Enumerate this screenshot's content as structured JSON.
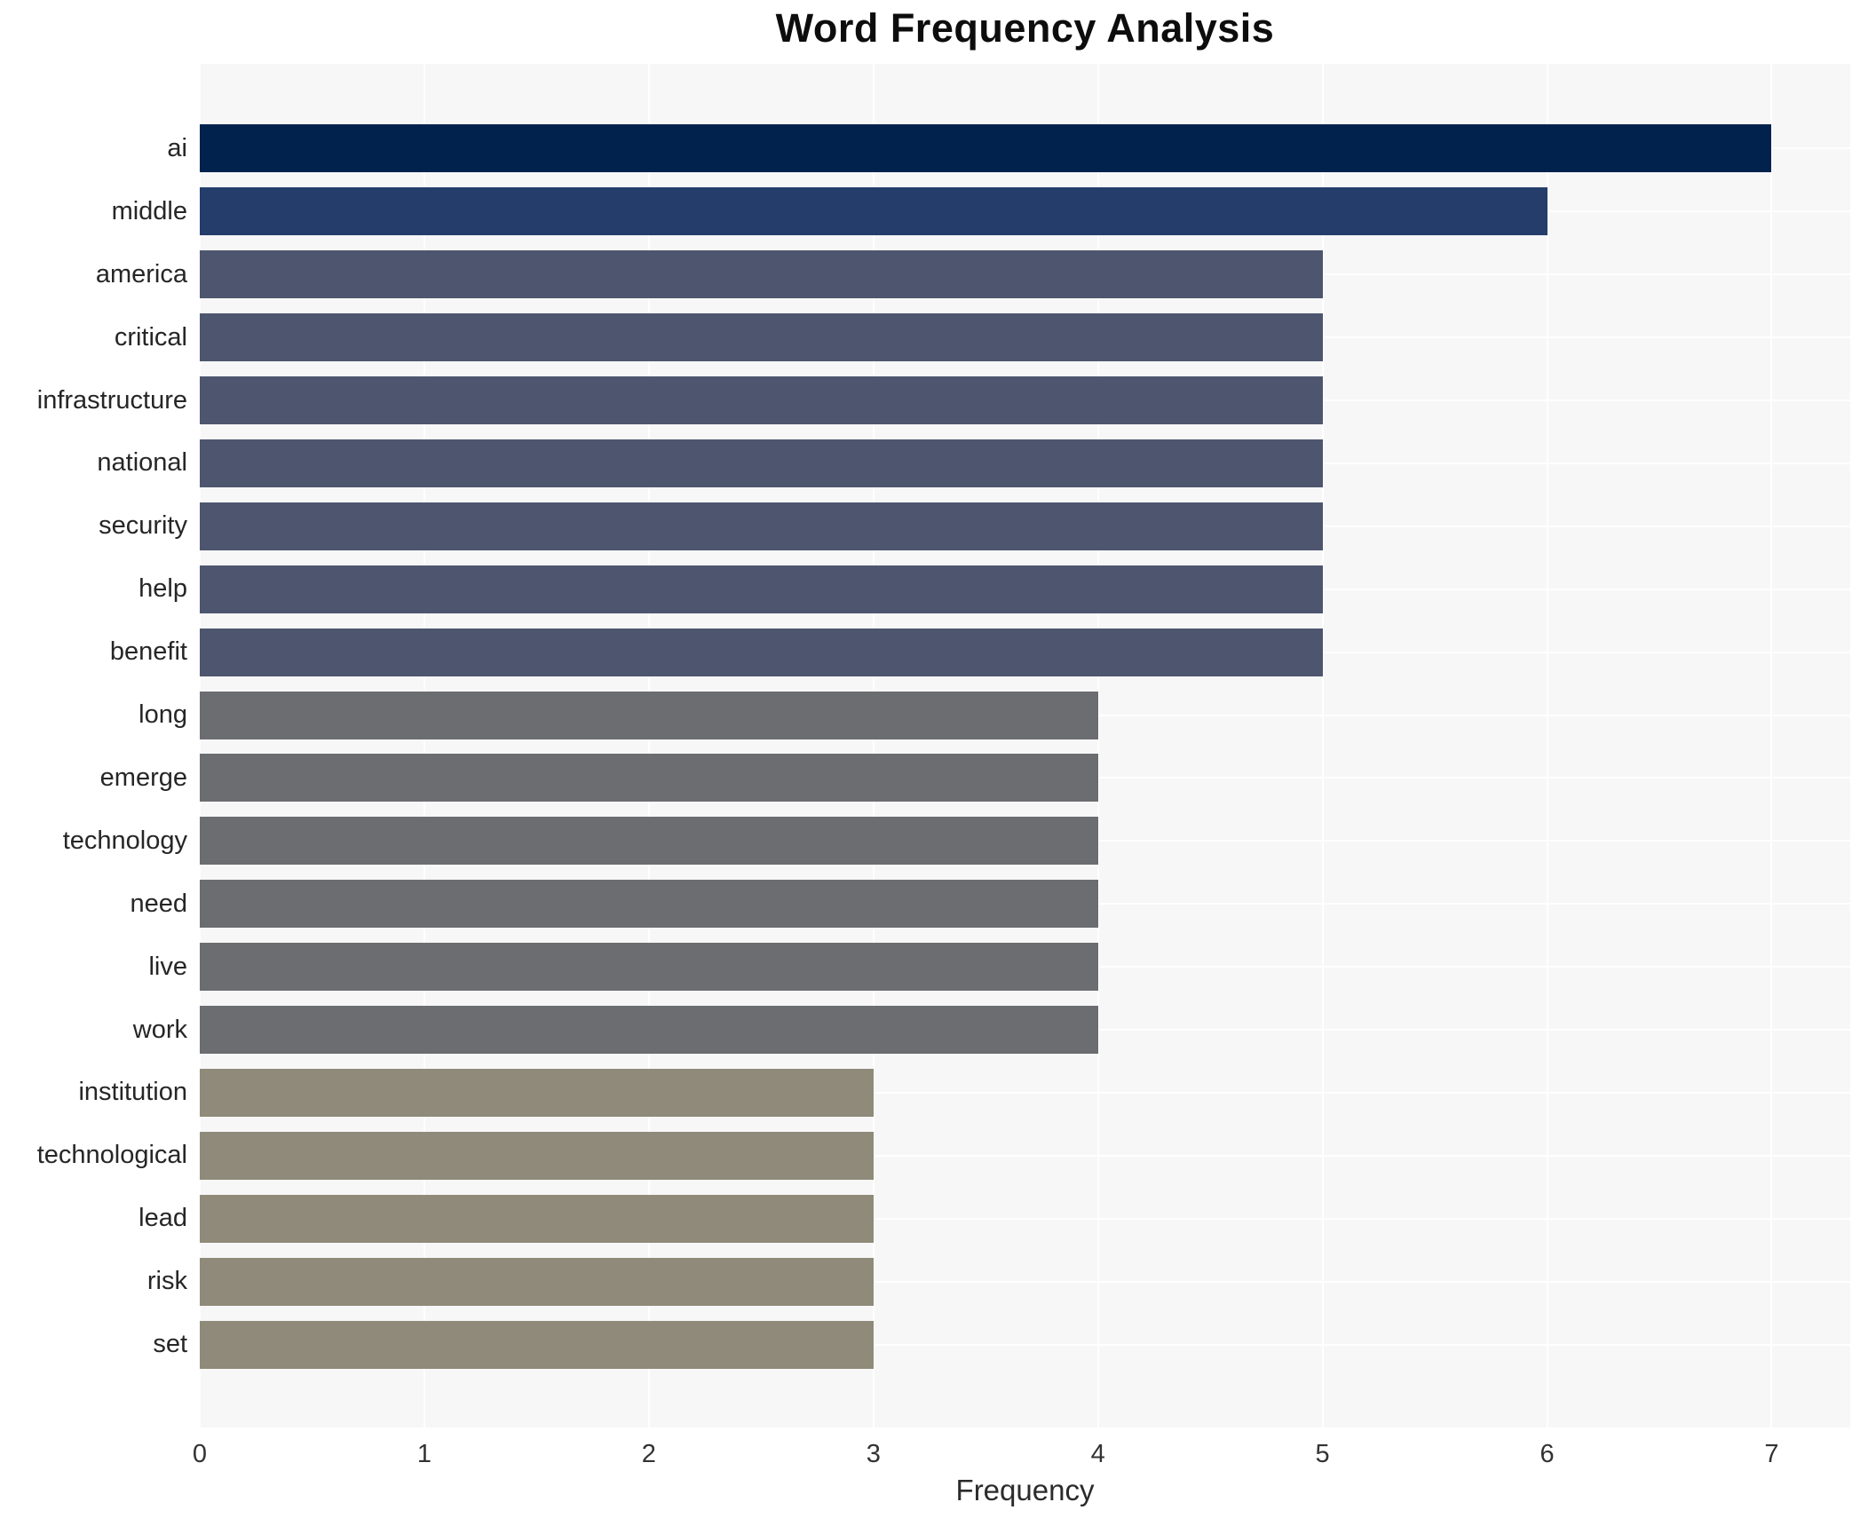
{
  "title": "Word Frequency Analysis",
  "xlabel": "Frequency",
  "colors": {
    "figure_background": "#ffffff",
    "plot_background": "#f7f7f8",
    "grid": "#ffffff",
    "title_text": "#0d0d0d",
    "label_text": "#262626",
    "tick_text": "#333333"
  },
  "chart_data": {
    "type": "bar",
    "orientation": "horizontal",
    "title": "Word Frequency Analysis",
    "xlabel": "Frequency",
    "ylabel": "",
    "categories": [
      "ai",
      "middle",
      "america",
      "critical",
      "infrastructure",
      "national",
      "security",
      "help",
      "benefit",
      "long",
      "emerge",
      "technology",
      "need",
      "live",
      "work",
      "institution",
      "technological",
      "lead",
      "risk",
      "set"
    ],
    "values": [
      7,
      6,
      5,
      5,
      5,
      5,
      5,
      5,
      5,
      4,
      4,
      4,
      4,
      4,
      4,
      3,
      3,
      3,
      3,
      3
    ],
    "bar_colors": [
      "#02224e",
      "#243d6b",
      "#4d566e",
      "#4d566e",
      "#4d566e",
      "#4d566e",
      "#4d566e",
      "#4d566e",
      "#4d566e",
      "#6b6d70",
      "#6b6d70",
      "#6b6d70",
      "#6b6d70",
      "#6b6d70",
      "#6b6d70",
      "#8f8a79",
      "#8f8a79",
      "#8f8a79",
      "#8f8a79",
      "#8f8a79"
    ],
    "xticks": [
      0,
      1,
      2,
      3,
      4,
      5,
      6,
      7
    ],
    "xlim": [
      0,
      7.35
    ],
    "grid": true,
    "legend": false
  }
}
